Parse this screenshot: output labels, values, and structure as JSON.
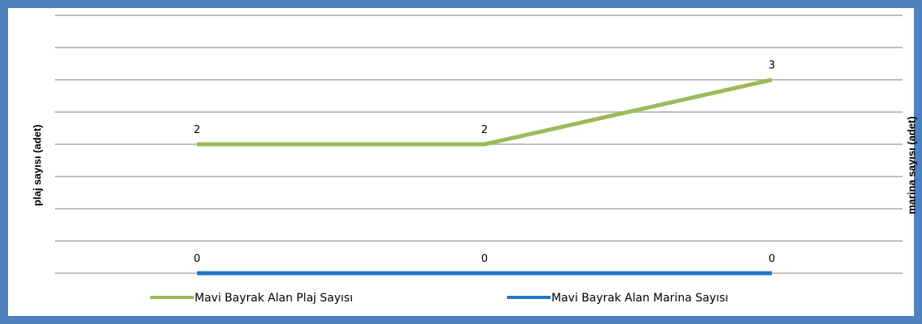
{
  "chart_data": {
    "type": "line",
    "categories": [
      "",
      "",
      ""
    ],
    "series": [
      {
        "name": "Mavi Bayrak Alan Plaj Sayısı",
        "values": [
          2,
          2,
          3
        ],
        "color": "#9bbb59",
        "axis": "left"
      },
      {
        "name": "Mavi Bayrak Alan Marina Sayısı",
        "values": [
          0,
          0,
          0
        ],
        "color": "#1f77c4",
        "axis": "right"
      }
    ],
    "ylabel": "plaj sayısı (adet)",
    "y2label": "marina sayısı (adet)",
    "ylim": [
      0,
      4
    ],
    "data_labels": true,
    "grid": true,
    "legend": "bottom"
  }
}
